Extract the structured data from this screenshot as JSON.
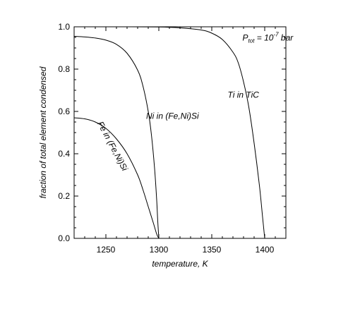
{
  "chart_data": {
    "type": "line",
    "title": "",
    "xlabel": "temperature, K",
    "ylabel": "fraction of total element condensed",
    "xlim": [
      1220,
      1420
    ],
    "ylim": [
      0.0,
      1.0
    ],
    "x_ticks": [
      1250,
      1300,
      1350,
      1400
    ],
    "x_tick_labels": [
      "1250",
      "1300",
      "1350",
      "1400"
    ],
    "y_ticks": [
      0.0,
      0.2,
      0.4,
      0.6,
      0.8,
      1.0
    ],
    "y_tick_labels": [
      "0.0",
      "0.2",
      "0.4",
      "0.6",
      "0.8",
      "1.0"
    ],
    "grid": false,
    "series": [
      {
        "name": "Fe in (Fe,Ni)Si",
        "x": [
          1220,
          1230,
          1240,
          1250,
          1260,
          1270,
          1280,
          1285,
          1290,
          1295,
          1298,
          1300
        ],
        "y": [
          0.57,
          0.565,
          0.55,
          0.52,
          0.47,
          0.4,
          0.3,
          0.23,
          0.15,
          0.07,
          0.02,
          0.0
        ]
      },
      {
        "name": "Ni in (Fe,Ni)Si",
        "x": [
          1220,
          1230,
          1240,
          1250,
          1260,
          1270,
          1280,
          1285,
          1290,
          1293,
          1296,
          1298,
          1299,
          1300
        ],
        "y": [
          0.955,
          0.952,
          0.947,
          0.937,
          0.917,
          0.875,
          0.795,
          0.72,
          0.6,
          0.49,
          0.33,
          0.18,
          0.08,
          0.0
        ]
      },
      {
        "name": "Ti in TiC",
        "x": [
          1220,
          1260,
          1300,
          1320,
          1340,
          1350,
          1360,
          1370,
          1375,
          1380,
          1385,
          1390,
          1395,
          1398,
          1400
        ],
        "y": [
          1.0,
          1.0,
          0.999,
          0.995,
          0.985,
          0.97,
          0.94,
          0.88,
          0.83,
          0.74,
          0.62,
          0.45,
          0.25,
          0.1,
          0.0
        ]
      }
    ],
    "annotations": [
      {
        "id": "fe",
        "text": "Fe in (Fe,Ni)Si",
        "x": 1254,
        "y": 0.43,
        "rotate": 62
      },
      {
        "id": "ni",
        "text": "Ni in (Fe,Ni)Si",
        "x": 1288,
        "y": 0.565,
        "rotate": 0
      },
      {
        "id": "ti",
        "text": "Ti in TiC",
        "x": 1365,
        "y": 0.665,
        "rotate": 0
      }
    ],
    "pressure_label": {
      "prefix": "P",
      "subscript": "tot",
      "equals": " = 10",
      "exponent": "-7",
      "unit": " bar",
      "x": 1379,
      "y": 0.935
    }
  }
}
